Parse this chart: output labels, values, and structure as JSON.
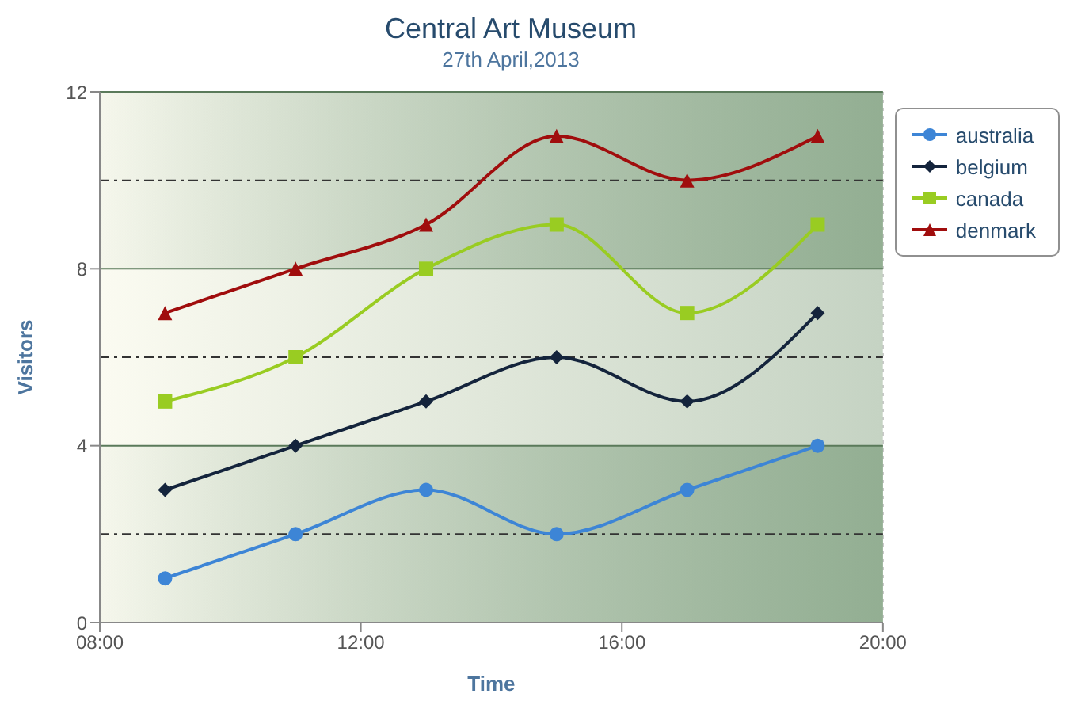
{
  "chart_data": {
    "type": "line",
    "title": "Central Art Museum",
    "subtitle": "27th April,2013",
    "xlabel": "Time",
    "ylabel": "Visitors",
    "x": [
      9,
      11,
      13,
      15,
      17,
      19
    ],
    "xlim": [
      8,
      20
    ],
    "xticks": [
      {
        "value": 8,
        "label": "08:00"
      },
      {
        "value": 12,
        "label": "12:00"
      },
      {
        "value": 16,
        "label": "16:00"
      },
      {
        "value": 20,
        "label": "20:00"
      }
    ],
    "ylim": [
      0,
      12
    ],
    "yticks": [
      0,
      4,
      8,
      12
    ],
    "grid": true,
    "legend": "top right",
    "line_style": "solid",
    "bands": [
      {
        "axis": "y",
        "from": 0,
        "to": 4,
        "color": "#8aa88a"
      },
      {
        "axis": "y",
        "from": 8,
        "to": 12,
        "color": "#8aa88a"
      }
    ],
    "ref_lines": [
      {
        "axis": "y",
        "value": 2,
        "line_style": "dashed",
        "color": "#333333"
      },
      {
        "axis": "y",
        "value": 6,
        "line_style": "dashed",
        "color": "#333333"
      },
      {
        "axis": "y",
        "value": 10,
        "line_style": "dashed",
        "color": "#333333"
      }
    ],
    "series": [
      {
        "name": "australia",
        "color": "#3d85d6",
        "marker": "circle",
        "values": [
          1,
          2,
          3,
          2,
          3,
          4
        ]
      },
      {
        "name": "belgium",
        "color": "#14243c",
        "marker": "diamond",
        "values": [
          3,
          4,
          5,
          6,
          5,
          7
        ]
      },
      {
        "name": "canada",
        "color": "#99cc22",
        "marker": "square",
        "values": [
          5,
          6,
          8,
          9,
          7,
          9
        ]
      },
      {
        "name": "denmark",
        "color": "#a00d0d",
        "marker": "triangle",
        "values": [
          7,
          8,
          9,
          11,
          10,
          11
        ]
      }
    ]
  }
}
